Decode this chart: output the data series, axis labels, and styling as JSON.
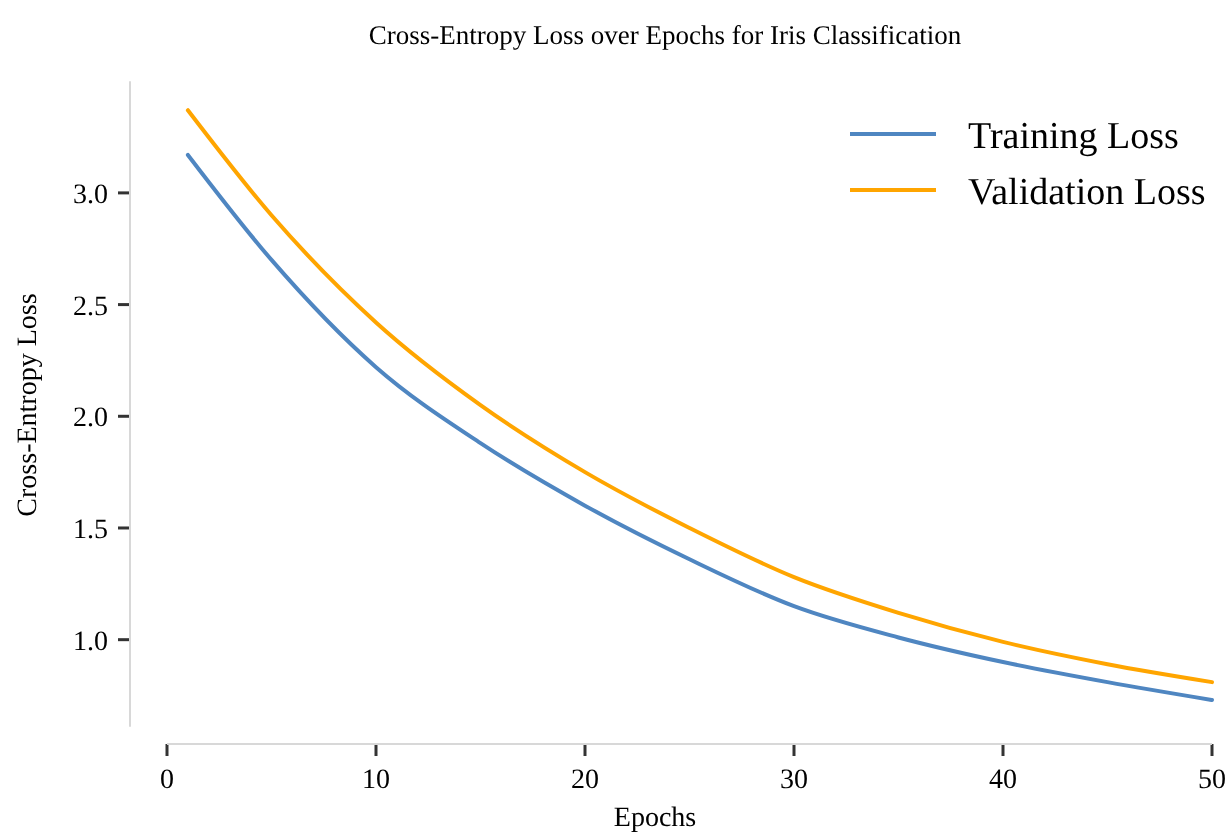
{
  "chart_data": {
    "type": "line",
    "title": "Cross-Entropy Loss over Epochs for Iris Classification",
    "xlabel": "Epochs",
    "ylabel": "Cross-Entropy Loss",
    "x": [
      1,
      5,
      10,
      15,
      20,
      25,
      30,
      35,
      40,
      45,
      50
    ],
    "series": [
      {
        "name": "Training Loss",
        "color": "#4f86c1",
        "values": [
          3.17,
          2.7,
          2.22,
          1.88,
          1.6,
          1.36,
          1.15,
          1.01,
          0.9,
          0.81,
          0.73
        ]
      },
      {
        "name": "Validation Loss",
        "color": "#ffa500",
        "values": [
          3.37,
          2.9,
          2.42,
          2.05,
          1.75,
          1.5,
          1.28,
          1.12,
          0.99,
          0.89,
          0.81
        ]
      }
    ],
    "xlim": [
      0,
      50
    ],
    "ylim": [
      0.61,
      3.5
    ],
    "xticks": [
      0,
      10,
      20,
      30,
      40,
      50
    ],
    "yticks": [
      {
        "value": 1,
        "label": "1.0"
      },
      {
        "value": 1.5,
        "label": "1.5"
      },
      {
        "value": 2,
        "label": "2.0"
      },
      {
        "value": 2.5,
        "label": "2.5"
      },
      {
        "value": 3,
        "label": "3.0"
      }
    ],
    "grid": false,
    "legend": "top right",
    "marker": "none",
    "line_style": "solid"
  }
}
